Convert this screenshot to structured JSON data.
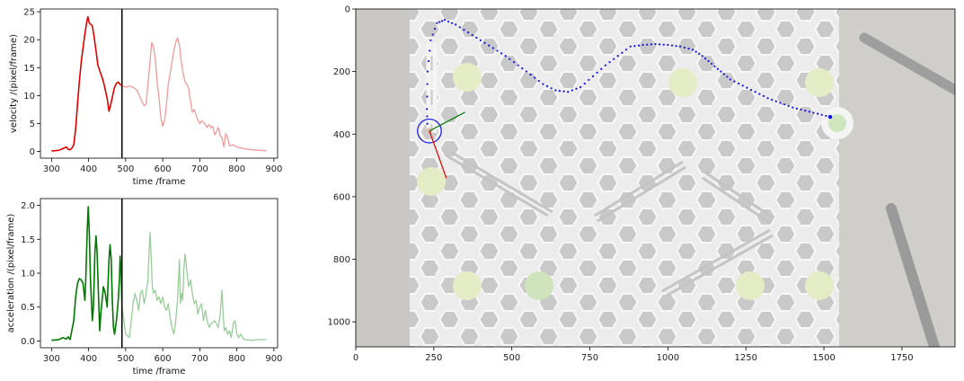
{
  "chart_data": [
    {
      "type": "line",
      "xlabel": "time /frame",
      "ylabel": "velocity /(pixel/frame)",
      "xlim": [
        270,
        910
      ],
      "ylim": [
        -1.2,
        25.5
      ],
      "xticks": [
        300,
        400,
        500,
        600,
        700,
        800,
        900
      ],
      "yticks": [
        0,
        5,
        10,
        15,
        20,
        25
      ],
      "marker_x": 490,
      "grid": false,
      "colors": {
        "past": "#dd0000",
        "future": "#f09a9a",
        "marker": "#000000"
      },
      "series": [
        {
          "role": "past",
          "x": [
            300,
            320,
            330,
            340,
            345,
            350,
            355,
            360,
            365,
            370,
            375,
            380,
            385,
            390,
            395,
            398,
            402,
            405,
            410,
            415,
            420,
            425,
            430,
            435,
            440,
            445,
            450,
            455,
            460,
            465,
            470,
            475,
            480,
            485,
            490
          ],
          "values": [
            0.1,
            0.2,
            0.5,
            0.8,
            0.4,
            0.3,
            0.6,
            1.2,
            4.0,
            8.5,
            12.5,
            16.0,
            18.5,
            21.0,
            23.2,
            24.1,
            23.0,
            22.8,
            22.5,
            20.5,
            18.0,
            15.5,
            14.5,
            13.5,
            12.5,
            11.0,
            9.5,
            7.2,
            8.5,
            10.0,
            11.5,
            12.2,
            12.4,
            12.0,
            11.8
          ]
        },
        {
          "role": "future",
          "x": [
            490,
            500,
            510,
            520,
            530,
            540,
            545,
            550,
            555,
            560,
            565,
            570,
            575,
            580,
            585,
            590,
            595,
            600,
            605,
            610,
            615,
            620,
            625,
            630,
            635,
            640,
            645,
            650,
            655,
            660,
            665,
            670,
            675,
            680,
            685,
            690,
            695,
            700,
            705,
            710,
            715,
            720,
            725,
            730,
            735,
            740,
            745,
            750,
            755,
            760,
            765,
            770,
            775,
            780,
            790,
            800,
            820,
            840,
            860,
            880
          ],
          "values": [
            11.8,
            11.5,
            11.7,
            11.5,
            11.0,
            9.5,
            8.8,
            8.2,
            8.5,
            12.0,
            15.5,
            19.5,
            18.8,
            16.5,
            12.5,
            9.5,
            6.0,
            4.5,
            5.5,
            8.5,
            12.0,
            14.0,
            16.0,
            18.0,
            19.5,
            20.3,
            19.0,
            16.0,
            14.0,
            12.5,
            12.0,
            11.2,
            9.0,
            7.0,
            7.5,
            6.5,
            5.5,
            5.0,
            5.5,
            5.2,
            4.8,
            4.3,
            4.8,
            4.2,
            4.5,
            3.0,
            3.5,
            4.3,
            2.8,
            2.5,
            0.8,
            3.2,
            2.5,
            1.0,
            1.2,
            0.8,
            0.5,
            0.3,
            0.2,
            0.1
          ]
        }
      ]
    },
    {
      "type": "line",
      "xlabel": "time /frame",
      "ylabel": "acceleration /(pixel/frame)",
      "xlim": [
        270,
        910
      ],
      "ylim": [
        -0.1,
        2.1
      ],
      "xticks": [
        300,
        400,
        500,
        600,
        700,
        800,
        900
      ],
      "yticks": [
        0.0,
        0.5,
        1.0,
        1.5,
        2.0
      ],
      "marker_x": 490,
      "grid": false,
      "colors": {
        "past": "#007700",
        "future": "#99cc99",
        "marker": "#000000"
      },
      "series": [
        {
          "role": "past",
          "x": [
            300,
            320,
            330,
            340,
            345,
            350,
            360,
            365,
            370,
            375,
            380,
            385,
            390,
            393,
            396,
            399,
            402,
            405,
            410,
            413,
            417,
            420,
            423,
            427,
            430,
            433,
            440,
            445,
            450,
            455,
            458,
            461,
            464,
            467,
            470,
            475,
            480,
            483,
            485,
            488,
            490
          ],
          "values": [
            0.01,
            0.02,
            0.05,
            0.03,
            0.06,
            0.02,
            0.3,
            0.65,
            0.85,
            0.92,
            0.9,
            0.85,
            0.6,
            1.0,
            1.6,
            1.98,
            1.6,
            0.9,
            0.3,
            0.5,
            1.3,
            1.55,
            1.3,
            0.6,
            0.15,
            0.4,
            0.8,
            0.7,
            0.5,
            1.2,
            1.42,
            1.2,
            0.6,
            0.2,
            0.1,
            0.3,
            0.6,
            0.9,
            1.25,
            1.0,
            0.5
          ]
        },
        {
          "role": "future",
          "x": [
            490,
            500,
            510,
            515,
            520,
            525,
            530,
            535,
            540,
            545,
            550,
            555,
            560,
            563,
            566,
            569,
            572,
            575,
            580,
            585,
            590,
            595,
            600,
            605,
            610,
            615,
            620,
            625,
            630,
            635,
            640,
            645,
            648,
            651,
            654,
            657,
            660,
            663,
            666,
            670,
            675,
            680,
            685,
            690,
            695,
            700,
            705,
            710,
            715,
            720,
            725,
            730,
            740,
            750,
            755,
            760,
            763,
            766,
            770,
            775,
            780,
            785,
            790,
            795,
            800,
            805,
            810,
            820,
            840,
            860,
            880
          ],
          "values": [
            0.5,
            0.1,
            0.05,
            0.3,
            0.55,
            0.7,
            0.6,
            0.45,
            0.7,
            0.75,
            0.55,
            0.7,
            0.9,
            1.3,
            1.6,
            1.2,
            0.8,
            0.7,
            0.75,
            0.6,
            0.65,
            0.55,
            0.65,
            0.5,
            0.45,
            0.55,
            0.35,
            0.2,
            0.1,
            0.3,
            0.6,
            1.2,
            0.55,
            0.7,
            0.6,
            1.05,
            1.28,
            1.15,
            1.0,
            0.8,
            0.9,
            0.7,
            0.55,
            0.6,
            0.4,
            0.5,
            0.55,
            0.3,
            0.45,
            0.3,
            0.2,
            0.25,
            0.3,
            0.2,
            0.4,
            0.75,
            0.4,
            0.15,
            0.2,
            0.1,
            0.15,
            0.05,
            0.25,
            0.3,
            0.1,
            0.05,
            0.1,
            0.02,
            0.01,
            0.02,
            0.02
          ]
        }
      ]
    },
    {
      "type": "scatter",
      "xlim": [
        0,
        1920
      ],
      "ylim": [
        1080,
        0
      ],
      "xticks": [
        0,
        250,
        500,
        750,
        1000,
        1250,
        1500,
        1750
      ],
      "yticks": [
        0,
        200,
        400,
        600,
        800,
        1000
      ],
      "grid": false,
      "colors": {
        "trajectory": "#1010ee",
        "circle": "#1010ee",
        "velocity_vector": "#dd0000",
        "acceleration_vector": "#007700"
      },
      "trajectory": {
        "x": [
          230,
          228,
          230,
          240,
          260,
          285,
          320,
          360,
          400,
          440,
          480,
          520,
          560,
          600,
          640,
          680,
          720,
          760,
          800,
          840,
          880,
          920,
          960,
          1000,
          1040,
          1080,
          1110,
          1140,
          1170,
          1200,
          1240,
          1280,
          1320,
          1360,
          1400,
          1440,
          1480,
          1520
        ],
        "y": [
          390,
          320,
          200,
          100,
          45,
          35,
          50,
          75,
          100,
          125,
          150,
          180,
          210,
          240,
          260,
          265,
          250,
          215,
          180,
          150,
          120,
          115,
          112,
          115,
          120,
          130,
          150,
          175,
          200,
          225,
          245,
          265,
          285,
          300,
          315,
          325,
          335,
          345
        ]
      },
      "current_position": {
        "x": 236,
        "y": 390
      },
      "circle_radius": 38,
      "velocity_vector_end": {
        "x": 290,
        "y": 540
      },
      "acceleration_vector_end": {
        "x": 350,
        "y": 330
      }
    }
  ]
}
